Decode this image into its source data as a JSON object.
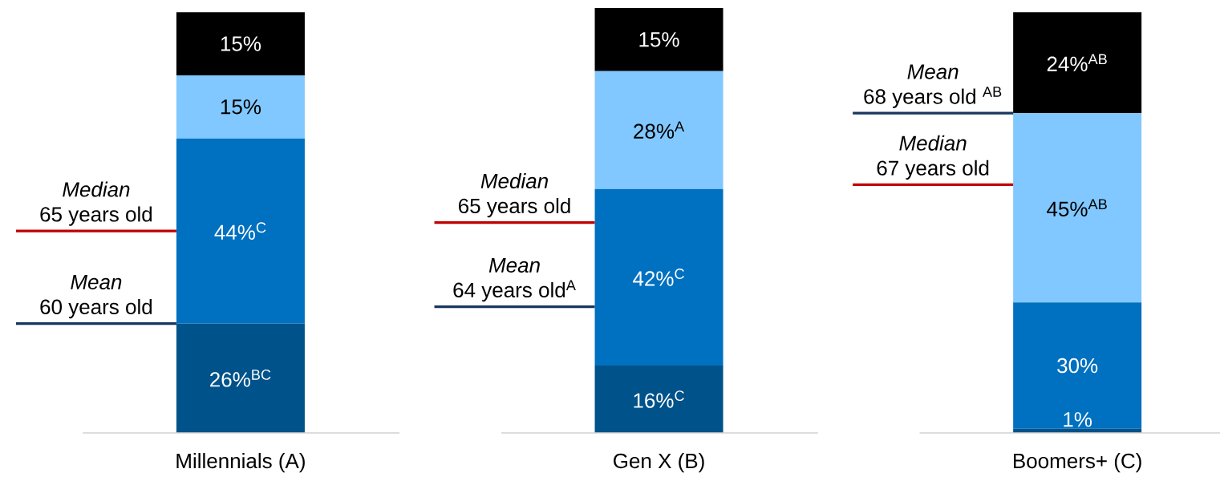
{
  "chart_data": {
    "type": "bar",
    "stacked": true,
    "tick_labels": "x",
    "categories": [
      "Millennials (A)",
      "Gen X (B)",
      "Boomers+ (C)"
    ],
    "series": [
      {
        "color": "#00528a",
        "values": [
          26,
          16,
          1
        ],
        "value_labels": [
          "26%$^{BC}$",
          "16%$^{C}$",
          "1%"
        ]
      },
      {
        "color": "#0070c0",
        "values": [
          44,
          42,
          30
        ],
        "value_labels": [
          "44%$^{C}$",
          "42%$^{C}$",
          "30%"
        ]
      },
      {
        "color": "#80c8ff",
        "values": [
          15,
          28,
          45
        ],
        "value_labels": [
          "15%",
          "28%$^{A}$",
          "45%$^{AB}$"
        ]
      },
      {
        "color": "#000000",
        "values": [
          15,
          15,
          24
        ],
        "value_labels": [
          "15%",
          "15%",
          "24%$^{AB}$"
        ]
      }
    ],
    "annotations": [
      "*Median*",
      "65 years old",
      "*Mean*",
      "60 years old",
      "*Median*",
      "65 years old",
      "*Mean*",
      "64 years old$^{A}$",
      "*Mean*",
      "68 years old $^{AB}$",
      "*Median*",
      "67 years old"
    ]
  }
}
